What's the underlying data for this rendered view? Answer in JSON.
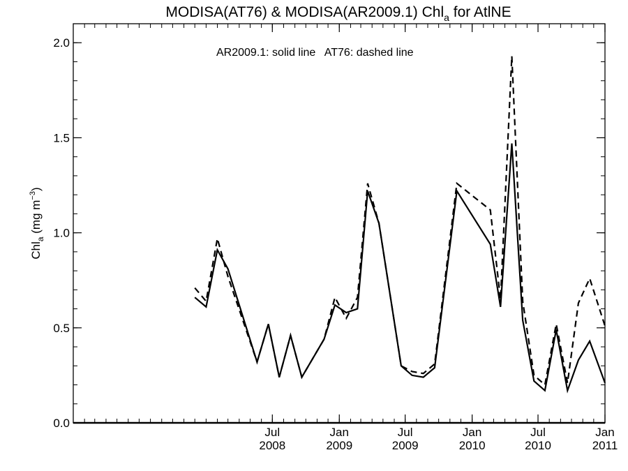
{
  "chart_data": {
    "type": "line",
    "title": {
      "main": "MODISA(AT76) & MODISA(AR2009.1)  Chl",
      "sub": "a",
      "tail": " for AtlNE"
    },
    "ylabel": {
      "main": "Chl",
      "sub": "a",
      "unit": " (mg m",
      "sup": "−3",
      "close": ")"
    },
    "annotation": "AR2009.1: solid line   AT76: dashed line",
    "ylim": [
      0.0,
      2.1
    ],
    "yticks": [
      {
        "value": 0.0,
        "label": "0.0"
      },
      {
        "value": 0.5,
        "label": "0.5"
      },
      {
        "value": 1.0,
        "label": "1.0"
      },
      {
        "value": 1.5,
        "label": "1.5"
      },
      {
        "value": 2.0,
        "label": "2.0"
      }
    ],
    "xlim": [
      "2007-01-01",
      "2011-01-01"
    ],
    "xticks": [
      {
        "date": "2008-07-01",
        "month": "Jul",
        "year": "2008"
      },
      {
        "date": "2009-01-01",
        "month": "Jan",
        "year": "2009"
      },
      {
        "date": "2009-07-01",
        "month": "Jul",
        "year": "2009"
      },
      {
        "date": "2010-01-01",
        "month": "Jan",
        "year": "2010"
      },
      {
        "date": "2010-07-01",
        "month": "Jul",
        "year": "2010"
      },
      {
        "date": "2011-01-01",
        "month": "Jan",
        "year": "2011"
      }
    ],
    "grid": false,
    "series": [
      {
        "name": "AR2009.1",
        "style": "solid",
        "color": "#000000",
        "points": [
          {
            "x": "2007-12-01",
            "y": 0.66
          },
          {
            "x": "2008-01-01",
            "y": 0.61
          },
          {
            "x": "2008-02-01",
            "y": 0.91
          },
          {
            "x": "2008-03-01",
            "y": 0.81
          },
          {
            "x": "2008-05-20",
            "y": 0.32
          },
          {
            "x": "2008-06-20",
            "y": 0.52
          },
          {
            "x": "2008-07-20",
            "y": 0.24
          },
          {
            "x": "2008-08-20",
            "y": 0.46
          },
          {
            "x": "2008-09-20",
            "y": 0.24
          },
          {
            "x": "2008-11-20",
            "y": 0.44
          },
          {
            "x": "2008-12-20",
            "y": 0.62
          },
          {
            "x": "2009-01-20",
            "y": 0.58
          },
          {
            "x": "2009-02-20",
            "y": 0.6
          },
          {
            "x": "2009-03-20",
            "y": 1.22
          },
          {
            "x": "2009-04-20",
            "y": 1.05
          },
          {
            "x": "2009-06-20",
            "y": 0.3
          },
          {
            "x": "2009-07-20",
            "y": 0.25
          },
          {
            "x": "2009-08-20",
            "y": 0.24
          },
          {
            "x": "2009-09-20",
            "y": 0.29
          },
          {
            "x": "2009-11-20",
            "y": 1.22
          },
          {
            "x": "2010-02-20",
            "y": 0.94
          },
          {
            "x": "2010-03-20",
            "y": 0.61
          },
          {
            "x": "2010-04-20",
            "y": 1.47
          },
          {
            "x": "2010-05-20",
            "y": 0.54
          },
          {
            "x": "2010-06-20",
            "y": 0.22
          },
          {
            "x": "2010-07-20",
            "y": 0.17
          },
          {
            "x": "2010-08-20",
            "y": 0.49
          },
          {
            "x": "2010-09-20",
            "y": 0.17
          },
          {
            "x": "2010-10-20",
            "y": 0.33
          },
          {
            "x": "2010-11-20",
            "y": 0.43
          },
          {
            "x": "2011-01-01",
            "y": 0.21
          }
        ]
      },
      {
        "name": "AT76",
        "style": "dashed",
        "color": "#000000",
        "points": [
          {
            "x": "2007-12-01",
            "y": 0.71
          },
          {
            "x": "2008-01-01",
            "y": 0.64
          },
          {
            "x": "2008-02-01",
            "y": 0.97
          },
          {
            "x": "2008-03-01",
            "y": 0.77
          },
          {
            "x": "2008-05-20",
            "y": 0.32
          },
          {
            "x": "2008-06-20",
            "y": 0.52
          },
          {
            "x": "2008-07-20",
            "y": 0.24
          },
          {
            "x": "2008-08-20",
            "y": 0.46
          },
          {
            "x": "2008-09-20",
            "y": 0.24
          },
          {
            "x": "2008-11-20",
            "y": 0.44
          },
          {
            "x": "2008-12-20",
            "y": 0.66
          },
          {
            "x": "2009-01-20",
            "y": 0.55
          },
          {
            "x": "2009-02-20",
            "y": 0.66
          },
          {
            "x": "2009-03-20",
            "y": 1.26
          },
          {
            "x": "2009-04-20",
            "y": 1.05
          },
          {
            "x": "2009-06-20",
            "y": 0.3
          },
          {
            "x": "2009-07-20",
            "y": 0.27
          },
          {
            "x": "2009-08-20",
            "y": 0.26
          },
          {
            "x": "2009-09-20",
            "y": 0.31
          },
          {
            "x": "2009-11-20",
            "y": 1.26
          },
          {
            "x": "2010-02-20",
            "y": 1.12
          },
          {
            "x": "2010-03-20",
            "y": 0.65
          },
          {
            "x": "2010-04-20",
            "y": 1.93
          },
          {
            "x": "2010-05-20",
            "y": 0.64
          },
          {
            "x": "2010-06-20",
            "y": 0.25
          },
          {
            "x": "2010-07-20",
            "y": 0.2
          },
          {
            "x": "2010-08-20",
            "y": 0.52
          },
          {
            "x": "2010-09-20",
            "y": 0.21
          },
          {
            "x": "2010-10-20",
            "y": 0.63
          },
          {
            "x": "2010-11-20",
            "y": 0.76
          },
          {
            "x": "2011-01-01",
            "y": 0.51
          }
        ]
      }
    ]
  }
}
